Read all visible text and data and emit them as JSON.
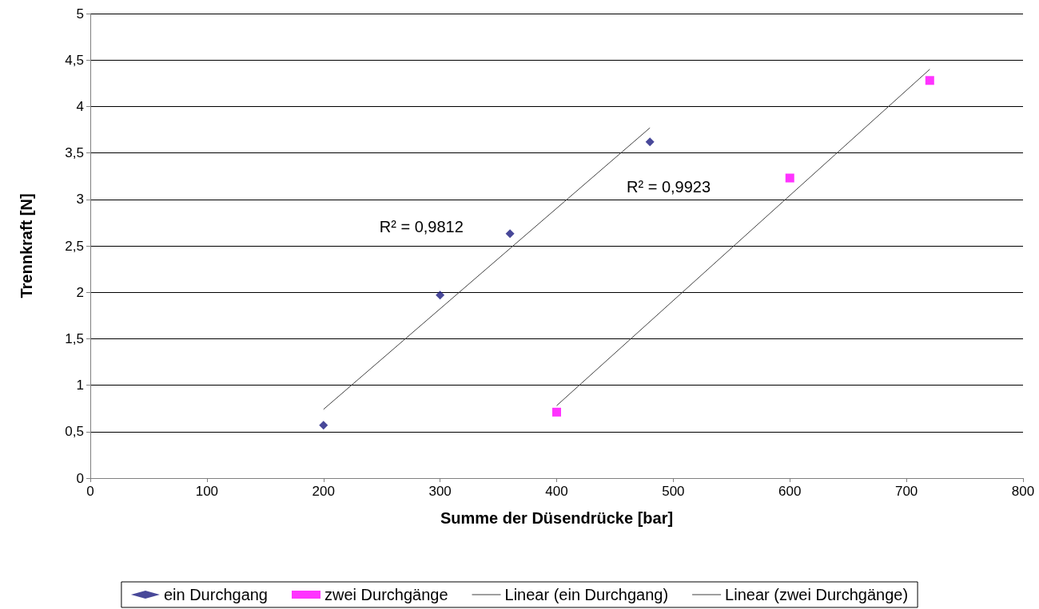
{
  "chart_data": {
    "type": "scatter",
    "xlabel": "Summe der Düsendrücke [bar]",
    "ylabel": "Trennkraft [N]",
    "xlim": [
      0,
      800
    ],
    "xticks": [
      0,
      100,
      200,
      300,
      400,
      500,
      600,
      700,
      800
    ],
    "ylim": [
      0,
      5
    ],
    "yticks": [
      0,
      {
        "value": 0.5,
        "label": "0,5"
      },
      1,
      {
        "value": 1.5,
        "label": "1,5"
      },
      2,
      {
        "value": 2.5,
        "label": "2,5"
      },
      3,
      {
        "value": 3.5,
        "label": "3,5"
      },
      4,
      {
        "value": 4.5,
        "label": "4,5"
      },
      5
    ],
    "grid": "y",
    "legend": "bottom",
    "series": [
      {
        "name": "ein Durchgang",
        "marker": "diamond",
        "color": "#1a1a80",
        "x": [
          200,
          300,
          360,
          480
        ],
        "values": [
          0.57,
          1.97,
          2.63,
          3.62
        ]
      },
      {
        "name": "zwei Durchgänge",
        "marker": "square",
        "color": "#ff00ff",
        "x": [
          400,
          600,
          720
        ],
        "values": [
          0.71,
          3.23,
          4.28
        ]
      },
      {
        "name": "Linear (ein Durchgang)",
        "type": "line",
        "marker": "none",
        "color": "#404040",
        "x": [
          200,
          480
        ],
        "values": [
          0.74,
          3.77
        ]
      },
      {
        "name": "Linear (zwei Durchgänge)",
        "type": "line",
        "marker": "none",
        "color": "#404040",
        "x": [
          400,
          720
        ],
        "values": [
          0.78,
          4.4
        ]
      }
    ],
    "annotations": [
      "R² = 0,9812",
      "R² = 0,9923"
    ]
  }
}
